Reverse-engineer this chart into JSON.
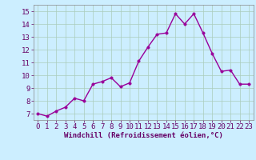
{
  "x": [
    0,
    1,
    2,
    3,
    4,
    5,
    6,
    7,
    8,
    9,
    10,
    11,
    12,
    13,
    14,
    15,
    16,
    17,
    18,
    19,
    20,
    21,
    22,
    23
  ],
  "y": [
    7.0,
    6.8,
    7.2,
    7.5,
    8.2,
    8.0,
    9.3,
    9.5,
    9.8,
    9.1,
    9.4,
    11.1,
    12.2,
    13.2,
    13.3,
    14.8,
    14.0,
    14.8,
    13.3,
    11.7,
    10.3,
    10.4,
    9.3,
    9.3
  ],
  "line_color": "#990099",
  "marker_color": "#990099",
  "bg_color": "#cceeff",
  "grid_color": "#aaccbb",
  "xlabel": "Windchill (Refroidissement éolien,°C)",
  "xlabel_color": "#660066",
  "xlim": [
    -0.5,
    23.5
  ],
  "ylim": [
    6.5,
    15.5
  ],
  "yticks": [
    7,
    8,
    9,
    10,
    11,
    12,
    13,
    14,
    15
  ],
  "xticks": [
    0,
    1,
    2,
    3,
    4,
    5,
    6,
    7,
    8,
    9,
    10,
    11,
    12,
    13,
    14,
    15,
    16,
    17,
    18,
    19,
    20,
    21,
    22,
    23
  ],
  "marker_size": 2.5,
  "line_width": 1.0,
  "tick_fontsize": 6.5,
  "xlabel_fontsize": 6.5
}
